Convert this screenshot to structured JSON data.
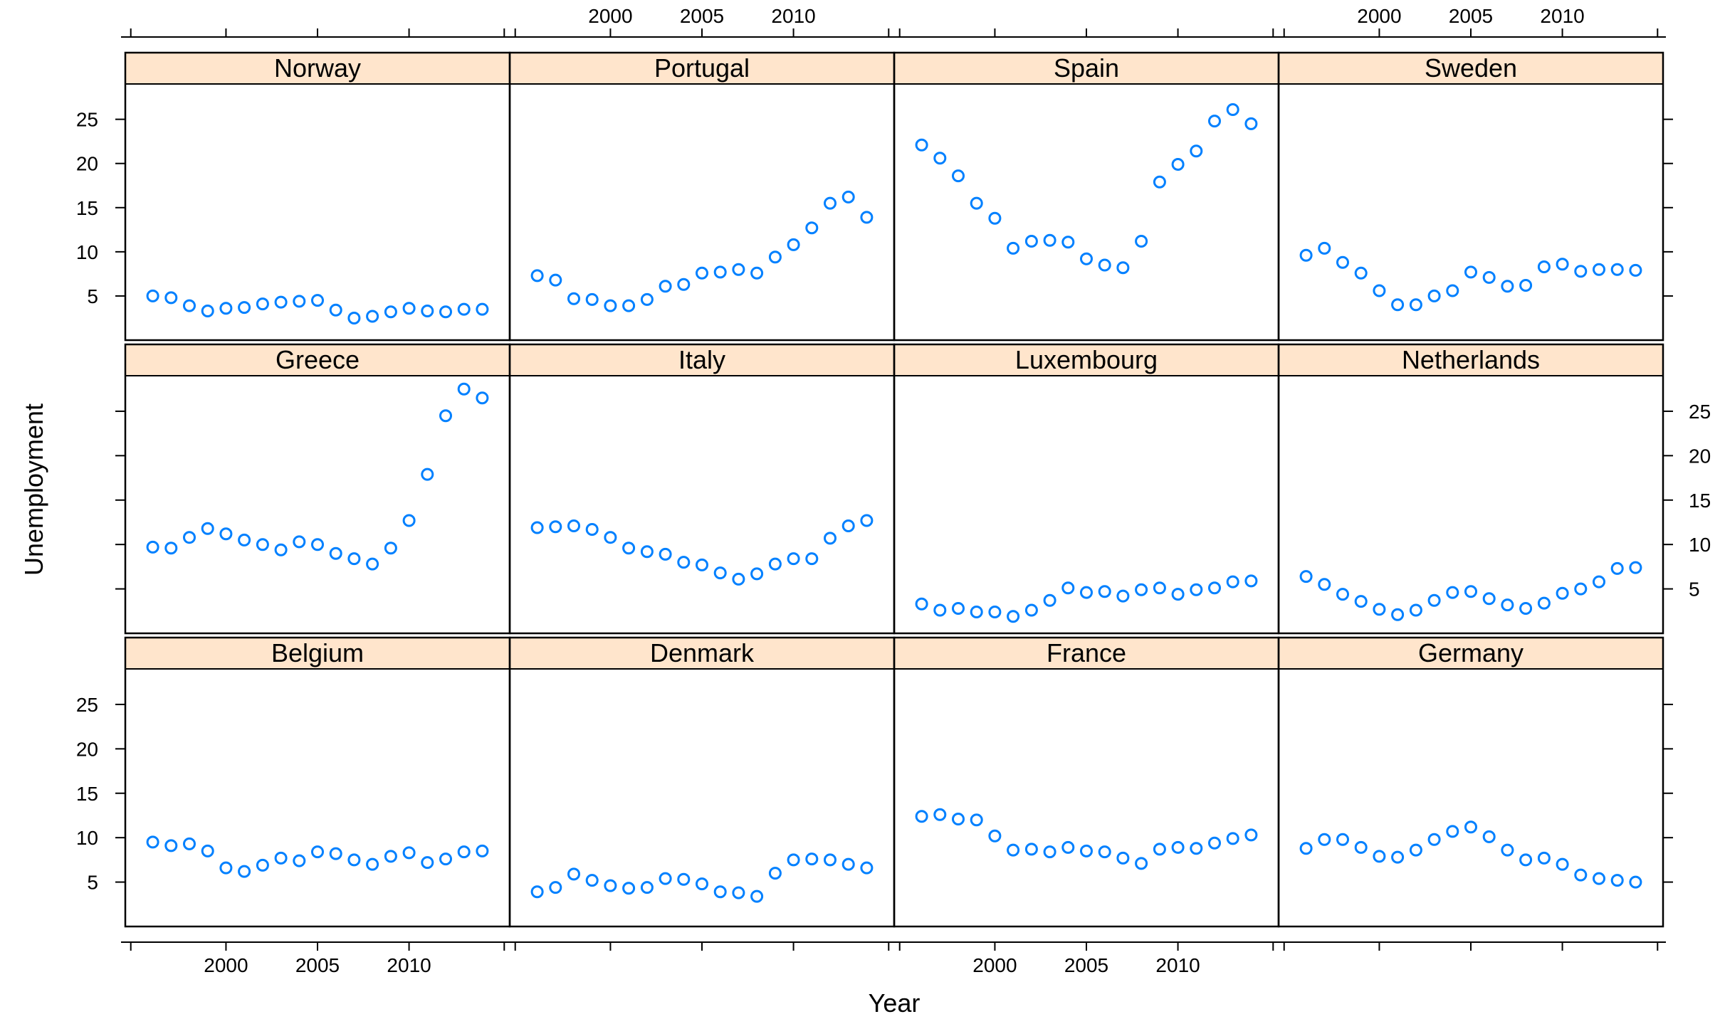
{
  "chart_data": {
    "type": "scatter",
    "layout": "lattice",
    "xlabel": "Year",
    "ylabel": "Unemployment",
    "xlim": [
      1994.5,
      2015.5
    ],
    "ylim": [
      0,
      29
    ],
    "xticks": [
      2000,
      2005,
      2010
    ],
    "yticks": [
      5,
      10,
      15,
      20,
      25
    ],
    "point_color": "#0080ff",
    "strip_color": "#ffe5cc",
    "years": [
      1996,
      1997,
      1998,
      1999,
      2000,
      2001,
      2002,
      2003,
      2004,
      2005,
      2006,
      2007,
      2008,
      2009,
      2010,
      2011,
      2012,
      2013,
      2014
    ],
    "panels": [
      {
        "name": "Norway",
        "values": [
          5.0,
          4.8,
          3.9,
          3.3,
          3.6,
          3.7,
          4.1,
          4.3,
          4.4,
          4.5,
          3.4,
          2.5,
          2.7,
          3.2,
          3.6,
          3.3,
          3.2,
          3.5,
          3.5
        ]
      },
      {
        "name": "Portugal",
        "values": [
          7.3,
          6.8,
          4.7,
          4.6,
          3.9,
          3.9,
          4.6,
          6.1,
          6.3,
          7.6,
          7.7,
          8.0,
          7.6,
          9.4,
          10.8,
          12.7,
          15.5,
          16.2,
          13.9
        ]
      },
      {
        "name": "Spain",
        "values": [
          22.1,
          20.6,
          18.6,
          15.5,
          13.8,
          10.4,
          11.2,
          11.3,
          11.1,
          9.2,
          8.5,
          8.2,
          11.2,
          17.9,
          19.9,
          21.4,
          24.8,
          26.1,
          24.5
        ]
      },
      {
        "name": "Sweden",
        "values": [
          9.6,
          10.4,
          8.8,
          7.6,
          5.6,
          4.0,
          4.0,
          5.0,
          5.6,
          7.7,
          7.1,
          6.1,
          6.2,
          8.3,
          8.6,
          7.8,
          8.0,
          8.0,
          7.9
        ]
      },
      {
        "name": "Greece",
        "values": [
          9.7,
          9.6,
          10.8,
          11.8,
          11.2,
          10.5,
          10.0,
          9.4,
          10.3,
          10.0,
          9.0,
          8.4,
          7.8,
          9.6,
          12.7,
          17.9,
          24.5,
          27.5,
          26.5
        ]
      },
      {
        "name": "Italy",
        "values": [
          11.9,
          12.0,
          12.1,
          11.7,
          10.8,
          9.6,
          9.2,
          8.9,
          8.0,
          7.7,
          6.8,
          6.1,
          6.7,
          7.8,
          8.4,
          8.4,
          10.7,
          12.1,
          12.7
        ]
      },
      {
        "name": "Luxembourg",
        "values": [
          3.3,
          2.6,
          2.8,
          2.4,
          2.4,
          1.9,
          2.6,
          3.7,
          5.1,
          4.6,
          4.7,
          4.2,
          4.9,
          5.1,
          4.4,
          4.9,
          5.1,
          5.8,
          5.9
        ]
      },
      {
        "name": "Netherlands",
        "values": [
          6.4,
          5.5,
          4.4,
          3.6,
          2.7,
          2.1,
          2.6,
          3.7,
          4.6,
          4.7,
          3.9,
          3.2,
          2.8,
          3.4,
          4.5,
          5.0,
          5.8,
          7.3,
          7.4
        ]
      },
      {
        "name": "Belgium",
        "values": [
          9.5,
          9.1,
          9.3,
          8.5,
          6.6,
          6.2,
          6.9,
          7.7,
          7.4,
          8.4,
          8.2,
          7.5,
          7.0,
          7.9,
          8.3,
          7.2,
          7.6,
          8.4,
          8.5
        ]
      },
      {
        "name": "Denmark",
        "values": [
          3.9,
          4.4,
          5.9,
          5.2,
          4.6,
          4.3,
          4.4,
          5.4,
          5.3,
          4.8,
          3.9,
          3.8,
          3.4,
          6.0,
          7.5,
          7.6,
          7.5,
          7.0,
          6.6
        ]
      },
      {
        "name": "France",
        "values": [
          12.4,
          12.6,
          12.1,
          12.0,
          10.2,
          8.6,
          8.7,
          8.4,
          8.9,
          8.5,
          8.4,
          7.7,
          7.1,
          8.7,
          8.9,
          8.8,
          9.4,
          9.9,
          10.3
        ]
      },
      {
        "name": "Germany",
        "values": [
          8.8,
          9.8,
          9.8,
          8.9,
          7.9,
          7.8,
          8.6,
          9.8,
          10.7,
          11.2,
          10.1,
          8.6,
          7.5,
          7.7,
          7.0,
          5.8,
          5.4,
          5.2,
          5.0
        ]
      }
    ]
  }
}
